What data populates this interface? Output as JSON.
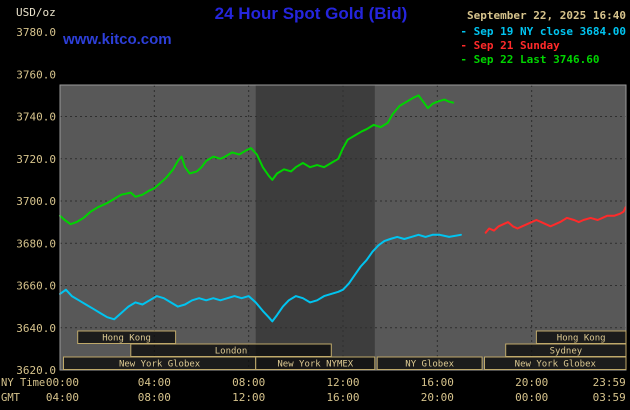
{
  "header": {
    "units": "USD/oz",
    "title": "24 Hour Spot Gold (Bid)",
    "datetime": "September 22, 2025 16:40",
    "watermark": "www.kitco.com"
  },
  "legend": [
    {
      "marker": "-",
      "label": "Sep 19 NY close 3684.00",
      "color": "#00c4f0"
    },
    {
      "marker": "-",
      "label": "Sep 21 Sunday",
      "color": "#ff2a2a"
    },
    {
      "marker": "-",
      "label": "Sep 22 Last 3746.60",
      "color": "#00d400"
    }
  ],
  "colors": {
    "background": "#000000",
    "plot_bg": "#585858",
    "plot_band": "#3d3d3d",
    "grid": "#2e2e2e",
    "frame": "#9a9a9a",
    "tan": "#d6c38c",
    "session_border": "#bfa96a",
    "session_text": "#dcc992"
  },
  "axes": {
    "y_ticks": [
      "3780.0",
      "3760.0",
      "3740.0",
      "3720.0",
      "3700.0",
      "3680.0",
      "3660.0",
      "3640.0",
      "3620.0"
    ],
    "x_ticks": [
      {
        "h": 0.1
      },
      {
        "h": 4
      },
      {
        "h": 8
      },
      {
        "h": 12
      },
      {
        "h": 16
      },
      {
        "h": 20
      },
      {
        "h": 23.99,
        "anchor": "end"
      }
    ],
    "x_rows": [
      {
        "label": "NY Time",
        "ticks": [
          "00:00",
          "04:00",
          "08:00",
          "12:00",
          "16:00",
          "20:00",
          "23:59"
        ]
      },
      {
        "label": "GMT",
        "ticks": [
          "04:00",
          "08:00",
          "12:00",
          "16:00",
          "20:00",
          "00:00",
          "03:59"
        ]
      }
    ]
  },
  "sessions": [
    {
      "label": "Hong Kong",
      "row": 0,
      "start": 0.75,
      "end": 4.9
    },
    {
      "label": "Hong Kong",
      "row": 0,
      "start": 20.2,
      "end": 24
    },
    {
      "label": "London",
      "row": 1,
      "start": 3.0,
      "end": 11.5
    },
    {
      "label": "Sydney",
      "row": 1,
      "start": 18.9,
      "end": 24
    },
    {
      "label": "New York Globex",
      "row": 2,
      "start": 0.15,
      "end": 8.3
    },
    {
      "label": "New York NYMEX",
      "row": 2,
      "start": 8.3,
      "end": 13.35
    },
    {
      "label": "NY Globex",
      "row": 2,
      "start": 13.45,
      "end": 17.9
    },
    {
      "label": "New York Globex",
      "row": 2,
      "start": 18.0,
      "end": 24
    }
  ],
  "chart_data": {
    "type": "line",
    "title": "24 Hour Spot Gold (Bid)",
    "ylabel": "USD/oz",
    "xlabel": "NY Time (hours)",
    "xlim": [
      0,
      24
    ],
    "ylim": [
      3620,
      3780
    ],
    "grid": true,
    "legend_position": "top-right",
    "nymex_band_hours": [
      8.3,
      13.35
    ],
    "series": [
      {
        "id": "sep19",
        "name": "Sep 19 NY close 3684.00",
        "color": "#00c4f0",
        "points": [
          [
            0.0,
            3656
          ],
          [
            0.25,
            3658
          ],
          [
            0.5,
            3655
          ],
          [
            0.8,
            3653
          ],
          [
            1.1,
            3651
          ],
          [
            1.4,
            3649
          ],
          [
            1.7,
            3647
          ],
          [
            2.0,
            3645
          ],
          [
            2.3,
            3644
          ],
          [
            2.6,
            3647
          ],
          [
            2.9,
            3650
          ],
          [
            3.2,
            3652
          ],
          [
            3.5,
            3651
          ],
          [
            3.8,
            3653
          ],
          [
            4.1,
            3655
          ],
          [
            4.4,
            3654
          ],
          [
            4.7,
            3652
          ],
          [
            5.0,
            3650
          ],
          [
            5.3,
            3651
          ],
          [
            5.6,
            3653
          ],
          [
            5.9,
            3654
          ],
          [
            6.2,
            3653
          ],
          [
            6.5,
            3654
          ],
          [
            6.8,
            3653
          ],
          [
            7.1,
            3654
          ],
          [
            7.4,
            3655
          ],
          [
            7.7,
            3654
          ],
          [
            8.0,
            3655
          ],
          [
            8.3,
            3652
          ],
          [
            8.6,
            3648
          ],
          [
            8.85,
            3645
          ],
          [
            9.0,
            3643
          ],
          [
            9.2,
            3646
          ],
          [
            9.45,
            3650
          ],
          [
            9.7,
            3653
          ],
          [
            10.0,
            3655
          ],
          [
            10.3,
            3654
          ],
          [
            10.6,
            3652
          ],
          [
            10.9,
            3653
          ],
          [
            11.2,
            3655
          ],
          [
            11.5,
            3656
          ],
          [
            11.8,
            3657
          ],
          [
            12.0,
            3658
          ],
          [
            12.25,
            3661
          ],
          [
            12.5,
            3665
          ],
          [
            12.75,
            3669
          ],
          [
            13.0,
            3672
          ],
          [
            13.25,
            3676
          ],
          [
            13.5,
            3679
          ],
          [
            13.75,
            3681
          ],
          [
            14.0,
            3682
          ],
          [
            14.3,
            3683
          ],
          [
            14.6,
            3682
          ],
          [
            14.9,
            3683
          ],
          [
            15.2,
            3684
          ],
          [
            15.5,
            3683
          ],
          [
            15.8,
            3684
          ],
          [
            16.1,
            3684
          ],
          [
            16.5,
            3683
          ],
          [
            17.0,
            3684
          ]
        ]
      },
      {
        "id": "sep21",
        "name": "Sep 21 Sunday",
        "color": "#ff2a2a",
        "points": [
          [
            18.05,
            3685
          ],
          [
            18.2,
            3687
          ],
          [
            18.4,
            3686
          ],
          [
            18.6,
            3688
          ],
          [
            18.8,
            3689
          ],
          [
            19.0,
            3690
          ],
          [
            19.2,
            3688
          ],
          [
            19.4,
            3687
          ],
          [
            19.6,
            3688
          ],
          [
            19.8,
            3689
          ],
          [
            20.0,
            3690
          ],
          [
            20.2,
            3691
          ],
          [
            20.4,
            3690
          ],
          [
            20.6,
            3689
          ],
          [
            20.8,
            3688
          ],
          [
            21.0,
            3689
          ],
          [
            21.2,
            3690
          ],
          [
            21.5,
            3692
          ],
          [
            21.8,
            3691
          ],
          [
            22.0,
            3690
          ],
          [
            22.2,
            3691
          ],
          [
            22.5,
            3692
          ],
          [
            22.8,
            3691
          ],
          [
            23.0,
            3692
          ],
          [
            23.2,
            3693
          ],
          [
            23.5,
            3693
          ],
          [
            23.75,
            3694
          ],
          [
            23.9,
            3695
          ],
          [
            23.98,
            3697
          ]
        ]
      },
      {
        "id": "sep22",
        "name": "Sep 22 Last 3746.60",
        "color": "#00d400",
        "points": [
          [
            0.0,
            3693
          ],
          [
            0.2,
            3691
          ],
          [
            0.45,
            3689
          ],
          [
            0.7,
            3690
          ],
          [
            1.0,
            3692
          ],
          [
            1.3,
            3695
          ],
          [
            1.6,
            3697
          ],
          [
            2.0,
            3699
          ],
          [
            2.3,
            3701
          ],
          [
            2.6,
            3703
          ],
          [
            3.0,
            3704
          ],
          [
            3.2,
            3702
          ],
          [
            3.5,
            3703
          ],
          [
            3.8,
            3705
          ],
          [
            4.0,
            3706
          ],
          [
            4.2,
            3708
          ],
          [
            4.5,
            3711
          ],
          [
            4.8,
            3715
          ],
          [
            5.0,
            3719
          ],
          [
            5.15,
            3721
          ],
          [
            5.3,
            3716
          ],
          [
            5.5,
            3713
          ],
          [
            5.8,
            3714
          ],
          [
            6.0,
            3716
          ],
          [
            6.2,
            3719
          ],
          [
            6.5,
            3721
          ],
          [
            6.8,
            3720
          ],
          [
            7.0,
            3721
          ],
          [
            7.3,
            3723
          ],
          [
            7.6,
            3722
          ],
          [
            7.9,
            3724
          ],
          [
            8.1,
            3725
          ],
          [
            8.35,
            3722
          ],
          [
            8.6,
            3716
          ],
          [
            8.85,
            3712
          ],
          [
            9.0,
            3710
          ],
          [
            9.2,
            3713
          ],
          [
            9.5,
            3715
          ],
          [
            9.8,
            3714
          ],
          [
            10.0,
            3716
          ],
          [
            10.3,
            3718
          ],
          [
            10.6,
            3716
          ],
          [
            10.9,
            3717
          ],
          [
            11.2,
            3716
          ],
          [
            11.5,
            3718
          ],
          [
            11.8,
            3720
          ],
          [
            12.0,
            3725
          ],
          [
            12.2,
            3729
          ],
          [
            12.5,
            3731
          ],
          [
            12.8,
            3733
          ],
          [
            13.0,
            3734
          ],
          [
            13.3,
            3736
          ],
          [
            13.6,
            3735
          ],
          [
            13.9,
            3737
          ],
          [
            14.1,
            3741
          ],
          [
            14.4,
            3745
          ],
          [
            14.7,
            3747
          ],
          [
            15.0,
            3749
          ],
          [
            15.2,
            3750
          ],
          [
            15.4,
            3747
          ],
          [
            15.6,
            3744
          ],
          [
            15.8,
            3746
          ],
          [
            16.0,
            3747
          ],
          [
            16.3,
            3748
          ],
          [
            16.5,
            3747
          ],
          [
            16.67,
            3746.6
          ]
        ]
      }
    ]
  }
}
